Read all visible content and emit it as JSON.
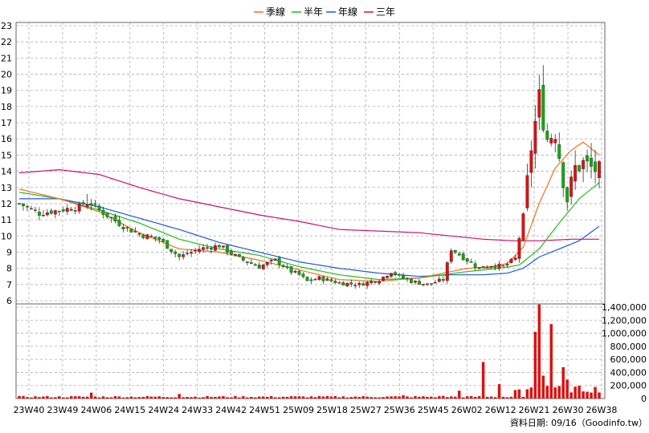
{
  "chart_data": {
    "type": "candlestick",
    "legend": [
      {
        "label": "季線",
        "color": "#e8731f"
      },
      {
        "label": "半年",
        "color": "#22bb22"
      },
      {
        "label": "年線",
        "color": "#2255dd"
      },
      {
        "label": "三年",
        "color": "#cc1166"
      }
    ],
    "price_axis": {
      "min": 6,
      "max": 23,
      "ticks": [
        6,
        7,
        8,
        9,
        10,
        11,
        12,
        13,
        14,
        15,
        16,
        17,
        18,
        19,
        20,
        21,
        22,
        23
      ]
    },
    "volume_axis": {
      "min": 0,
      "max": 1400000,
      "ticks": [
        "0",
        "200,000",
        "400,000",
        "600,000",
        "800,000",
        "1,000,000",
        "1,200,000",
        "1,400,000"
      ]
    },
    "x_labels": [
      "23W40",
      "23W49",
      "24W06",
      "24W15",
      "24W24",
      "24W33",
      "24W42",
      "24W51",
      "25W09",
      "25W18",
      "25W27",
      "25W36",
      "25W45",
      "26W02",
      "26W12",
      "26W21",
      "26W30",
      "26W38"
    ],
    "colors": {
      "up": "#dd1111",
      "down": "#11aa11",
      "grid": "#aaaaaa",
      "volume": "#dd1111"
    },
    "price_anchors": [
      [
        0,
        12.0
      ],
      [
        5,
        11.4
      ],
      [
        10,
        11.6
      ],
      [
        15,
        11.8
      ],
      [
        17,
        12.2
      ],
      [
        20,
        11.6
      ],
      [
        26,
        10.6
      ],
      [
        30,
        10.1
      ],
      [
        35,
        9.8
      ],
      [
        40,
        8.7
      ],
      [
        45,
        9.2
      ],
      [
        50,
        9.4
      ],
      [
        55,
        8.6
      ],
      [
        60,
        8.1
      ],
      [
        64,
        8.5
      ],
      [
        68,
        7.8
      ],
      [
        70,
        7.6
      ],
      [
        72,
        7.2
      ],
      [
        75,
        7.4
      ],
      [
        80,
        7.1
      ],
      [
        85,
        7.0
      ],
      [
        90,
        7.3
      ],
      [
        93,
        7.8
      ],
      [
        95,
        7.5
      ],
      [
        98,
        7.2
      ],
      [
        102,
        7.0
      ],
      [
        106,
        7.3
      ],
      [
        108,
        9.2
      ],
      [
        112,
        8.5
      ],
      [
        115,
        8.0
      ],
      [
        118,
        8.2
      ],
      [
        121,
        8.1
      ],
      [
        124,
        8.6
      ],
      [
        126,
        11.2
      ],
      [
        128,
        15.5
      ],
      [
        130,
        18.5
      ],
      [
        132,
        16.0
      ],
      [
        134,
        16.5
      ],
      [
        136,
        13.5
      ],
      [
        137,
        12.3
      ],
      [
        139,
        14.2
      ],
      [
        141,
        14.5
      ],
      [
        143,
        14.2
      ],
      [
        145,
        14.0
      ]
    ],
    "ma_quarter": [
      [
        0,
        12.9
      ],
      [
        10,
        12.3
      ],
      [
        20,
        11.5
      ],
      [
        30,
        10.2
      ],
      [
        40,
        9.2
      ],
      [
        50,
        9.0
      ],
      [
        60,
        8.5
      ],
      [
        70,
        7.9
      ],
      [
        80,
        7.3
      ],
      [
        90,
        7.2
      ],
      [
        100,
        7.4
      ],
      [
        106,
        7.7
      ],
      [
        112,
        8.0
      ],
      [
        118,
        8.1
      ],
      [
        122,
        8.3
      ],
      [
        126,
        9.3
      ],
      [
        130,
        12.0
      ],
      [
        134,
        14.2
      ],
      [
        138,
        15.3
      ],
      [
        141,
        15.8
      ],
      [
        145,
        15.0
      ]
    ],
    "ma_half": [
      [
        0,
        12.7
      ],
      [
        10,
        12.3
      ],
      [
        20,
        11.6
      ],
      [
        30,
        10.8
      ],
      [
        40,
        9.8
      ],
      [
        50,
        9.2
      ],
      [
        60,
        8.8
      ],
      [
        70,
        8.1
      ],
      [
        80,
        7.6
      ],
      [
        90,
        7.3
      ],
      [
        100,
        7.4
      ],
      [
        106,
        7.6
      ],
      [
        112,
        7.8
      ],
      [
        120,
        8.0
      ],
      [
        125,
        8.2
      ],
      [
        130,
        9.2
      ],
      [
        135,
        10.8
      ],
      [
        140,
        12.3
      ],
      [
        145,
        13.3
      ]
    ],
    "ma_year": [
      [
        0,
        12.3
      ],
      [
        10,
        12.3
      ],
      [
        20,
        11.8
      ],
      [
        30,
        11.1
      ],
      [
        40,
        10.4
      ],
      [
        50,
        9.6
      ],
      [
        60,
        9.0
      ],
      [
        70,
        8.4
      ],
      [
        80,
        8.0
      ],
      [
        90,
        7.7
      ],
      [
        100,
        7.5
      ],
      [
        108,
        7.6
      ],
      [
        116,
        7.6
      ],
      [
        122,
        7.7
      ],
      [
        126,
        8.0
      ],
      [
        130,
        8.7
      ],
      [
        135,
        9.2
      ],
      [
        140,
        9.7
      ],
      [
        145,
        10.6
      ]
    ],
    "ma_3year": [
      [
        0,
        13.9
      ],
      [
        10,
        14.1
      ],
      [
        20,
        13.8
      ],
      [
        30,
        13.0
      ],
      [
        40,
        12.3
      ],
      [
        50,
        11.8
      ],
      [
        60,
        11.3
      ],
      [
        70,
        10.9
      ],
      [
        80,
        10.4
      ],
      [
        90,
        10.3
      ],
      [
        100,
        10.2
      ],
      [
        108,
        10.0
      ],
      [
        116,
        9.8
      ],
      [
        124,
        9.7
      ],
      [
        130,
        9.7
      ],
      [
        138,
        9.8
      ],
      [
        145,
        9.8
      ]
    ],
    "volume_spikes": [
      [
        18,
        90000
      ],
      [
        40,
        70000
      ],
      [
        96,
        50000
      ],
      [
        106,
        40000
      ],
      [
        110,
        120000
      ],
      [
        116,
        560000
      ],
      [
        120,
        220000
      ],
      [
        124,
        130000
      ],
      [
        125,
        140000
      ],
      [
        128,
        170000
      ],
      [
        129,
        1020000
      ],
      [
        130,
        1440000
      ],
      [
        131,
        350000
      ],
      [
        133,
        1140000
      ],
      [
        136,
        480000
      ],
      [
        137,
        290000
      ]
    ],
    "footer_text": "資料日期: 09/16（Goodinfo.tw）"
  }
}
